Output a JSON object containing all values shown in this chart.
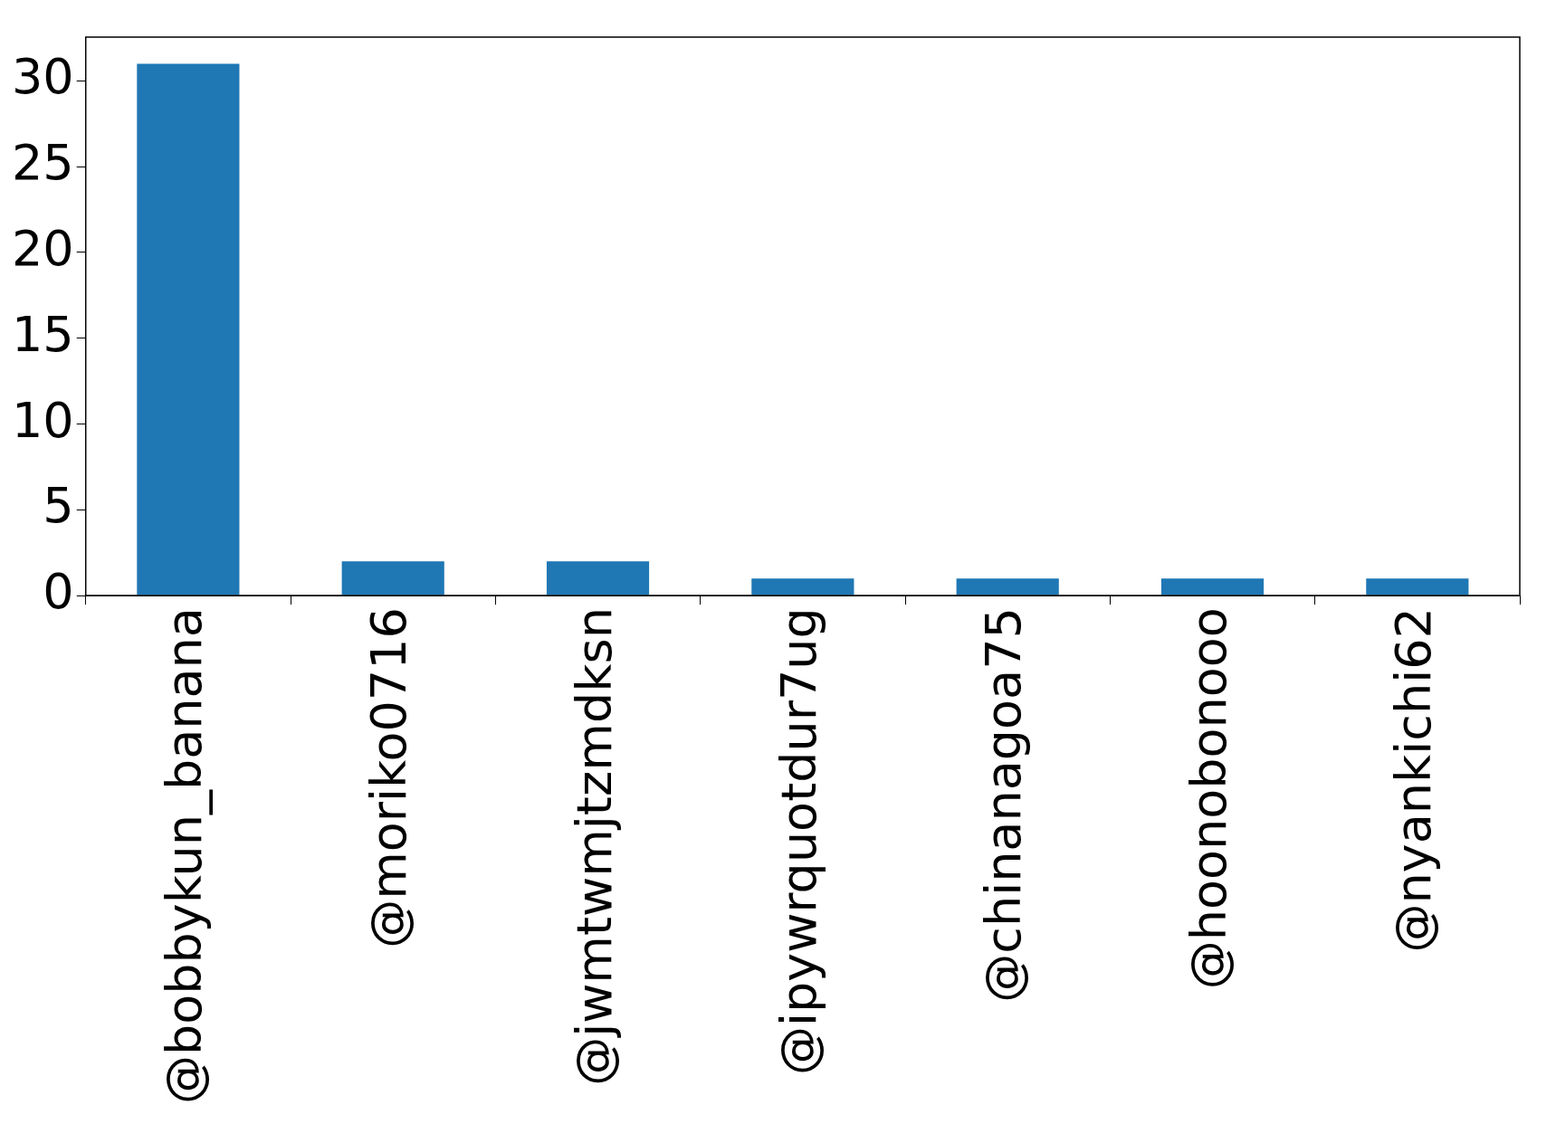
{
  "chart_data": {
    "type": "bar",
    "categories": [
      "@bobbykun_banana",
      "@moriko0716",
      "@jwmtwmjtzmdksn",
      "@ipywrquotdur7ug",
      "@chinanagoa75",
      "@hoonobonooo",
      "@nyankichi62"
    ],
    "values": [
      31,
      2,
      2,
      1,
      1,
      1,
      1
    ],
    "color": "#1f77b4",
    "ylim": [
      0,
      32.55
    ],
    "yticks": [
      0,
      5,
      10,
      15,
      20,
      25,
      30
    ],
    "grid": false,
    "legend": false
  }
}
